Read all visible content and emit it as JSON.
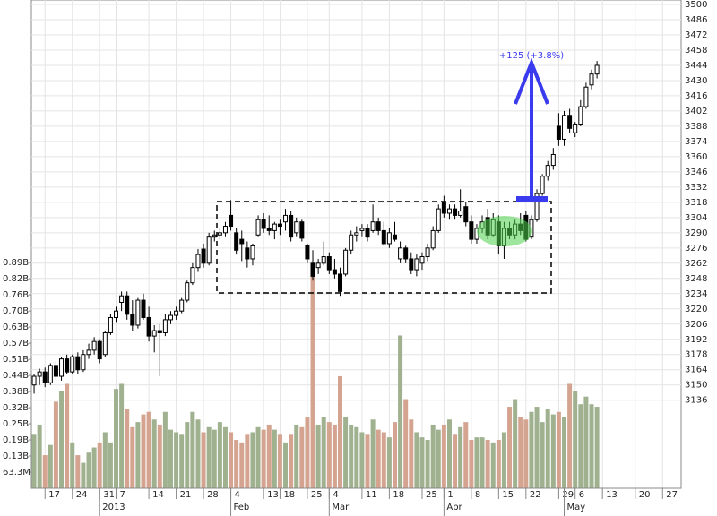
{
  "chart_data": {
    "type": "candlestick",
    "annotation": "+125 (+3.8%)",
    "ylim": [
      3055,
      3500
    ],
    "yticks": [
      3136,
      3150,
      3164,
      3178,
      3192,
      3206,
      3220,
      3234,
      3248,
      3262,
      3276,
      3290,
      3304,
      3318,
      3332,
      3346,
      3360,
      3374,
      3388,
      3402,
      3416,
      3430,
      3444,
      3458,
      3472,
      3486,
      3500
    ],
    "y2lim": [
      0,
      1.9
    ],
    "y2ticks": [
      {
        "value": 0.0633,
        "label": "63.3M"
      },
      {
        "value": 0.1266,
        "label": "0.13B"
      },
      {
        "value": 0.1899,
        "label": "0.19B"
      },
      {
        "value": 0.2532,
        "label": "0.25B"
      },
      {
        "value": 0.3165,
        "label": "0.32B"
      },
      {
        "value": 0.3798,
        "label": "0.38B"
      },
      {
        "value": 0.4431,
        "label": "0.44B"
      },
      {
        "value": 0.5064,
        "label": "0.51B"
      },
      {
        "value": 0.5697,
        "label": "0.57B"
      },
      {
        "value": 0.633,
        "label": "0.63B"
      },
      {
        "value": 0.6963,
        "label": "0.70B"
      },
      {
        "value": 0.7596,
        "label": "0.76B"
      },
      {
        "value": 0.8229,
        "label": "0.82B"
      },
      {
        "value": 0.8862,
        "label": "0.89B"
      }
    ],
    "xlim": [
      -0.5,
      118.4
    ],
    "xticks": [
      {
        "value": 2,
        "label": "17"
      },
      {
        "value": 7,
        "label": "24"
      },
      {
        "value": 12,
        "label": "31"
      },
      {
        "value": 15,
        "label": "7"
      },
      {
        "value": 21,
        "label": "14"
      },
      {
        "value": 26,
        "label": "21"
      },
      {
        "value": 31,
        "label": "28"
      },
      {
        "value": 36,
        "label": "4"
      },
      {
        "value": 42,
        "label": "13"
      },
      {
        "value": 45,
        "label": "18"
      },
      {
        "value": 50,
        "label": "25"
      },
      {
        "value": 54,
        "label": "4"
      },
      {
        "value": 60,
        "label": "11"
      },
      {
        "value": 65,
        "label": "18"
      },
      {
        "value": 71,
        "label": "25"
      },
      {
        "value": 75,
        "label": "1"
      },
      {
        "value": 80,
        "label": "8"
      },
      {
        "value": 85,
        "label": "15"
      },
      {
        "value": 90,
        "label": "22"
      },
      {
        "value": 96,
        "label": "29"
      },
      {
        "value": 99,
        "label": "6"
      },
      {
        "value": 104,
        "label": "13"
      },
      {
        "value": 110,
        "label": "20"
      },
      {
        "value": 115,
        "label": "27"
      }
    ],
    "month_ticks": [
      {
        "value": 12,
        "label": "2013"
      },
      {
        "value": 36,
        "label": "Feb"
      },
      {
        "value": 54,
        "label": "Mar"
      },
      {
        "value": 75,
        "label": "Apr"
      },
      {
        "value": 97,
        "label": "May"
      }
    ],
    "grid": true,
    "up_color": "#ffffff",
    "down_color": "#000000",
    "volume_up_color": "#9fb18f",
    "volume_down_color": "#d4a491",
    "ohlc": [
      [
        3150,
        3160,
        3142,
        3158
      ],
      [
        3158,
        3165,
        3150,
        3162
      ],
      [
        3162,
        3166,
        3148,
        3152
      ],
      [
        3152,
        3170,
        3150,
        3168
      ],
      [
        3168,
        3172,
        3155,
        3158
      ],
      [
        3158,
        3176,
        3154,
        3174
      ],
      [
        3174,
        3178,
        3160,
        3162
      ],
      [
        3162,
        3178,
        3160,
        3176
      ],
      [
        3176,
        3180,
        3160,
        3164
      ],
      [
        3164,
        3182,
        3162,
        3178
      ],
      [
        3178,
        3188,
        3174,
        3182
      ],
      [
        3182,
        3194,
        3178,
        3190
      ],
      [
        3190,
        3192,
        3170,
        3174
      ],
      [
        3178,
        3200,
        3176,
        3198
      ],
      [
        3198,
        3215,
        3196,
        3212
      ],
      [
        3212,
        3222,
        3208,
        3218
      ],
      [
        3226,
        3236,
        3218,
        3232
      ],
      [
        3232,
        3236,
        3210,
        3215
      ],
      [
        3215,
        3228,
        3200,
        3205
      ],
      [
        3205,
        3230,
        3202,
        3228
      ],
      [
        3228,
        3234,
        3210,
        3212
      ],
      [
        3212,
        3222,
        3190,
        3195
      ],
      [
        3195,
        3205,
        3180,
        3200
      ],
      [
        3200,
        3206,
        3158,
        3198
      ],
      [
        3198,
        3215,
        3195,
        3210
      ],
      [
        3210,
        3218,
        3206,
        3214
      ],
      [
        3214,
        3222,
        3210,
        3218
      ],
      [
        3218,
        3230,
        3216,
        3228
      ],
      [
        3228,
        3246,
        3226,
        3244
      ],
      [
        3244,
        3262,
        3242,
        3258
      ],
      [
        3258,
        3275,
        3254,
        3270
      ],
      [
        3275,
        3280,
        3258,
        3262
      ],
      [
        3262,
        3290,
        3260,
        3286
      ],
      [
        3286,
        3292,
        3282,
        3288
      ],
      [
        3288,
        3294,
        3284,
        3290
      ],
      [
        3290,
        3300,
        3286,
        3296
      ],
      [
        3306,
        3320,
        3292,
        3296
      ],
      [
        3290,
        3294,
        3270,
        3274
      ],
      [
        3284,
        3292,
        3264,
        3280
      ],
      [
        3276,
        3282,
        3258,
        3266
      ],
      [
        3266,
        3280,
        3260,
        3278
      ],
      [
        3288,
        3306,
        3286,
        3302
      ],
      [
        3302,
        3308,
        3290,
        3294
      ],
      [
        3294,
        3306,
        3288,
        3292
      ],
      [
        3292,
        3300,
        3284,
        3298
      ],
      [
        3298,
        3302,
        3288,
        3296
      ],
      [
        3300,
        3312,
        3292,
        3306
      ],
      [
        3306,
        3310,
        3282,
        3286
      ],
      [
        3290,
        3304,
        3286,
        3300
      ],
      [
        3300,
        3302,
        3282,
        3285
      ],
      [
        3278,
        3280,
        3262,
        3266
      ],
      [
        3262,
        3274,
        3246,
        3250
      ],
      [
        3258,
        3266,
        3252,
        3262
      ],
      [
        3262,
        3282,
        3260,
        3268
      ],
      [
        3268,
        3272,
        3252,
        3256
      ],
      [
        3256,
        3266,
        3248,
        3252
      ],
      [
        3252,
        3258,
        3232,
        3236
      ],
      [
        3252,
        3276,
        3250,
        3274
      ],
      [
        3274,
        3292,
        3270,
        3288
      ],
      [
        3288,
        3296,
        3282,
        3290
      ],
      [
        3292,
        3298,
        3286,
        3294
      ],
      [
        3294,
        3298,
        3282,
        3286
      ],
      [
        3292,
        3316,
        3290,
        3300
      ],
      [
        3300,
        3304,
        3288,
        3292
      ],
      [
        3292,
        3300,
        3278,
        3280
      ],
      [
        3280,
        3294,
        3276,
        3290
      ],
      [
        3288,
        3300,
        3282,
        3284
      ],
      [
        3266,
        3282,
        3262,
        3276
      ],
      [
        3276,
        3278,
        3262,
        3266
      ],
      [
        3266,
        3272,
        3252,
        3256
      ],
      [
        3256,
        3270,
        3250,
        3266
      ],
      [
        3262,
        3272,
        3256,
        3268
      ],
      [
        3268,
        3280,
        3264,
        3276
      ],
      [
        3276,
        3296,
        3274,
        3292
      ],
      [
        3292,
        3316,
        3290,
        3312
      ],
      [
        3318,
        3324,
        3304,
        3308
      ],
      [
        3308,
        3316,
        3302,
        3312
      ],
      [
        3312,
        3316,
        3302,
        3306
      ],
      [
        3306,
        3330,
        3304,
        3310
      ],
      [
        3314,
        3318,
        3296,
        3300
      ],
      [
        3300,
        3306,
        3280,
        3284
      ],
      [
        3284,
        3298,
        3280,
        3294
      ],
      [
        3294,
        3306,
        3290,
        3300
      ],
      [
        3304,
        3312,
        3284,
        3288
      ],
      [
        3288,
        3308,
        3286,
        3302
      ],
      [
        3300,
        3306,
        3270,
        3278
      ],
      [
        3278,
        3300,
        3266,
        3294
      ],
      [
        3294,
        3300,
        3284,
        3288
      ],
      [
        3288,
        3302,
        3284,
        3298
      ],
      [
        3298,
        3308,
        3288,
        3292
      ],
      [
        3306,
        3310,
        3282,
        3284
      ],
      [
        3286,
        3306,
        3284,
        3302
      ],
      [
        3302,
        3330,
        3300,
        3326
      ],
      [
        3326,
        3344,
        3324,
        3342
      ],
      [
        3342,
        3356,
        3338,
        3352
      ],
      [
        3352,
        3368,
        3348,
        3362
      ],
      [
        3388,
        3400,
        3370,
        3376
      ],
      [
        3376,
        3402,
        3370,
        3398
      ],
      [
        3398,
        3404,
        3382,
        3386
      ],
      [
        3382,
        3392,
        3378,
        3390
      ],
      [
        3390,
        3412,
        3388,
        3406
      ],
      [
        3406,
        3428,
        3404,
        3424
      ],
      [
        3426,
        3440,
        3422,
        3436
      ],
      [
        3436,
        3448,
        3432,
        3444
      ]
    ],
    "volume": [
      0.21,
      0.25,
      0.13,
      0.17,
      0.34,
      0.38,
      0.41,
      0.18,
      0.13,
      0.1,
      0.14,
      0.16,
      0.18,
      0.22,
      0.18,
      0.39,
      0.41,
      0.31,
      0.24,
      0.26,
      0.29,
      0.3,
      0.27,
      0.25,
      0.3,
      0.23,
      0.22,
      0.21,
      0.26,
      0.3,
      0.27,
      0.22,
      0.24,
      0.23,
      0.26,
      0.24,
      0.22,
      0.19,
      0.18,
      0.21,
      0.22,
      0.24,
      0.23,
      0.25,
      0.23,
      0.21,
      0.18,
      0.21,
      0.25,
      0.24,
      0.28,
      0.86,
      0.25,
      0.28,
      0.26,
      0.25,
      0.44,
      0.28,
      0.25,
      0.24,
      0.22,
      0.21,
      0.27,
      0.23,
      0.22,
      0.2,
      0.26,
      0.6,
      0.35,
      0.27,
      0.22,
      0.2,
      0.19,
      0.25,
      0.23,
      0.25,
      0.27,
      0.21,
      0.24,
      0.26,
      0.19,
      0.2,
      0.2,
      0.19,
      0.18,
      0.19,
      0.22,
      0.32,
      0.35,
      0.28,
      0.27,
      0.3,
      0.32,
      0.26,
      0.31,
      0.29,
      0.3,
      0.28,
      0.41,
      0.38,
      0.33,
      0.36,
      0.33,
      0.32
    ]
  }
}
